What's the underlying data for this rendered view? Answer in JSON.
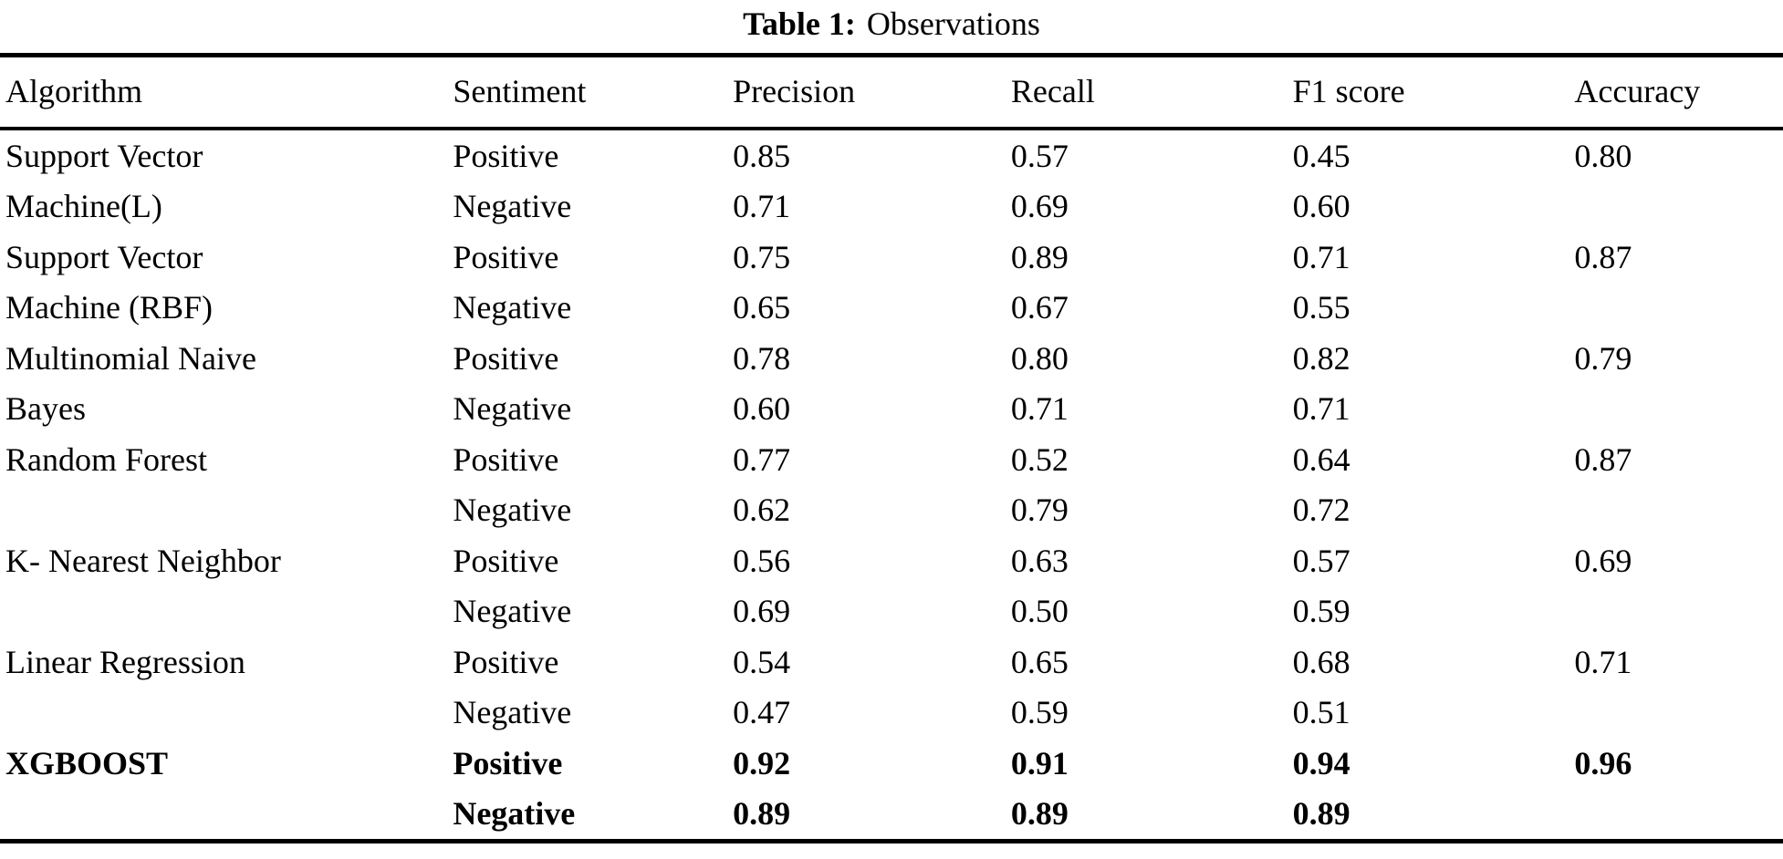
{
  "caption": {
    "label": "Table 1:",
    "text": "Observations"
  },
  "colors": {
    "text": "#000000",
    "background": "#ffffff",
    "rule": "#000000"
  },
  "chart_data": {
    "type": "table",
    "title": "Table 1: Observations",
    "columns": [
      "Algorithm",
      "Sentiment",
      "Precision",
      "Recall",
      "F1 score",
      "Accuracy"
    ],
    "rows": [
      {
        "algorithm": "Support Vector",
        "sentiment": "Positive",
        "precision": "0.85",
        "recall": "0.57",
        "f1": "0.45",
        "accuracy": "0.80",
        "bold": false
      },
      {
        "algorithm": "Machine(L)",
        "sentiment": "Negative",
        "precision": "0.71",
        "recall": "0.69",
        "f1": "0.60",
        "accuracy": "",
        "bold": false
      },
      {
        "algorithm": "Support Vector",
        "sentiment": "Positive",
        "precision": "0.75",
        "recall": "0.89",
        "f1": "0.71",
        "accuracy": "0.87",
        "bold": false
      },
      {
        "algorithm": "Machine (RBF)",
        "sentiment": "Negative",
        "precision": "0.65",
        "recall": "0.67",
        "f1": "0.55",
        "accuracy": "",
        "bold": false
      },
      {
        "algorithm": "Multinomial Naive",
        "sentiment": "Positive",
        "precision": "0.78",
        "recall": "0.80",
        "f1": "0.82",
        "accuracy": "0.79",
        "bold": false
      },
      {
        "algorithm": "Bayes",
        "sentiment": "Negative",
        "precision": "0.60",
        "recall": "0.71",
        "f1": "0.71",
        "accuracy": "",
        "bold": false
      },
      {
        "algorithm": "Random Forest",
        "sentiment": "Positive",
        "precision": "0.77",
        "recall": "0.52",
        "f1": "0.64",
        "accuracy": "0.87",
        "bold": false
      },
      {
        "algorithm": "",
        "sentiment": "Negative",
        "precision": "0.62",
        "recall": "0.79",
        "f1": "0.72",
        "accuracy": "",
        "bold": false
      },
      {
        "algorithm": "K- Nearest Neighbor",
        "sentiment": "Positive",
        "precision": "0.56",
        "recall": "0.63",
        "f1": "0.57",
        "accuracy": "0.69",
        "bold": false
      },
      {
        "algorithm": "",
        "sentiment": "Negative",
        "precision": "0.69",
        "recall": "0.50",
        "f1": "0.59",
        "accuracy": "",
        "bold": false
      },
      {
        "algorithm": "Linear Regression",
        "sentiment": "Positive",
        "precision": "0.54",
        "recall": "0.65",
        "f1": "0.68",
        "accuracy": "0.71",
        "bold": false
      },
      {
        "algorithm": "",
        "sentiment": "Negative",
        "precision": "0.47",
        "recall": "0.59",
        "f1": "0.51",
        "accuracy": "",
        "bold": false
      },
      {
        "algorithm": "XGBOOST",
        "sentiment": "Positive",
        "precision": "0.92",
        "recall": "0.91",
        "f1": "0.94",
        "accuracy": "0.96",
        "bold": true
      },
      {
        "algorithm": "",
        "sentiment": "Negative",
        "precision": "0.89",
        "recall": "0.89",
        "f1": "0.89",
        "accuracy": "",
        "bold": true
      }
    ]
  }
}
